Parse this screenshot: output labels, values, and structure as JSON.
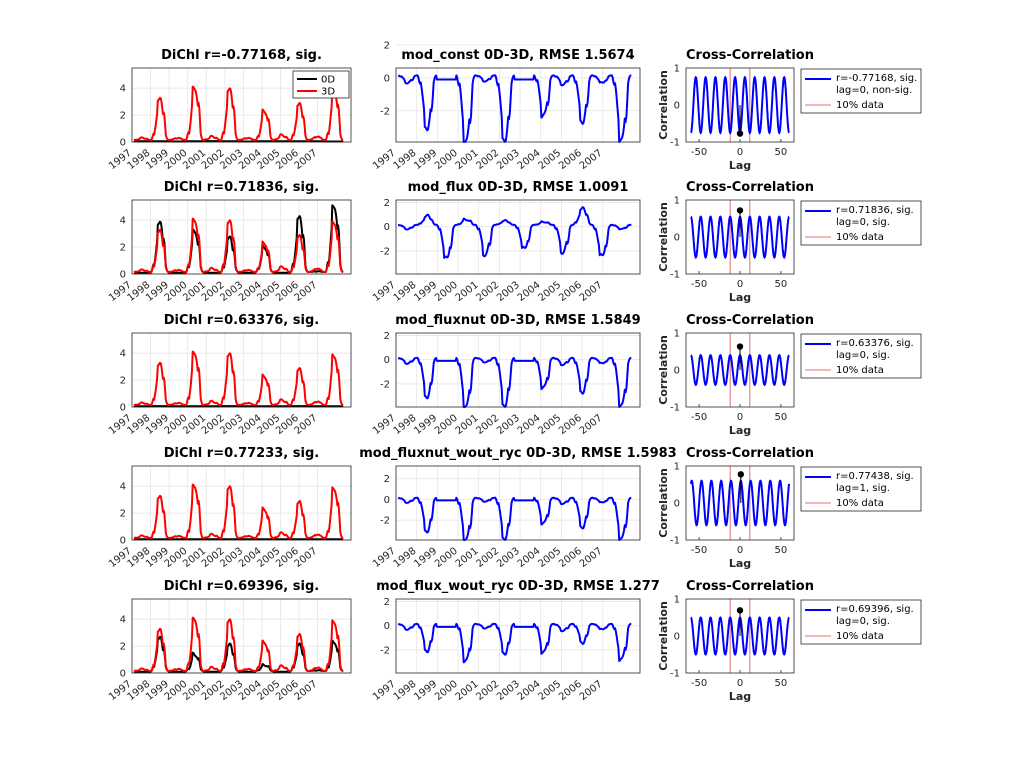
{
  "figure": {
    "background": "#ffffff",
    "grid": true
  },
  "chart_data": [
    {
      "type": "line",
      "title": "DiChl r=-0.77168, sig.",
      "x_ticks": [
        "1997",
        "1998",
        "1999",
        "2000",
        "2001",
        "2002",
        "2003",
        "2004",
        "2005",
        "2006",
        "2007"
      ],
      "ylim": [
        0,
        5.5
      ],
      "y_ticks": [
        0,
        2,
        4
      ],
      "legend": [
        "0D",
        "3D"
      ],
      "series": [
        {
          "name": "0D",
          "color": "#000000",
          "values": [
            0.05,
            0.06,
            0.04,
            0.05,
            0.07,
            0.05,
            0.04,
            0.06,
            0.05,
            0.06,
            0.05,
            0.04
          ]
        },
        {
          "name": "3D",
          "color": "#ff0000",
          "values": [
            0.3,
            3.2,
            0.3,
            4,
            0.4,
            3.9,
            0.3,
            2.3,
            0.5,
            2.8,
            0.4,
            3.8
          ]
        }
      ]
    },
    {
      "type": "line",
      "title": "mod_const 0D-3D, RMSE 1.5674",
      "x_ticks": [
        "1997",
        "1998",
        "1999",
        "2000",
        "2001",
        "2002",
        "2003",
        "2004",
        "2005",
        "2006",
        "2007"
      ],
      "ylim": [
        -3.9,
        0.6
      ],
      "y_ticks": [
        -2,
        0,
        2
      ],
      "series": [
        {
          "name": "",
          "color": "#0000ff",
          "values": [
            -0.3,
            -3.1,
            -0.1,
            -3.9,
            -0.2,
            -3.8,
            -0.1,
            -2.3,
            -0.4,
            -2.7,
            -0.3,
            -3.8
          ]
        }
      ]
    },
    {
      "type": "line",
      "title": "Cross-Correlation",
      "xlabel": "Lag",
      "ylabel": "Correlation",
      "xlim": [
        -66,
        66
      ],
      "ylim": [
        -1,
        1
      ],
      "x_ticks": [
        -50,
        0,
        50
      ],
      "y_ticks": [
        -1,
        0,
        1
      ],
      "period": 12,
      "amplitude": 0.75,
      "phase": -1,
      "peak": {
        "lag": 0,
        "r": -0.77168
      },
      "sig_lines": [
        -12,
        12
      ],
      "legend": [
        "r=-0.77168, sig.",
        "lag=0, non-sig.",
        "10% data"
      ]
    },
    {
      "type": "line",
      "title": "DiChl r=0.71836, sig.",
      "x_ticks": [
        "1997",
        "1998",
        "1999",
        "2000",
        "2001",
        "2002",
        "2003",
        "2004",
        "2005",
        "2006",
        "2007"
      ],
      "ylim": [
        0,
        5.5
      ],
      "y_ticks": [
        0,
        2,
        4
      ],
      "series": [
        {
          "name": "0D",
          "color": "#000000",
          "values": [
            0.1,
            3.8,
            0.1,
            3.2,
            0.1,
            2.7,
            0.1,
            2.0,
            0.1,
            4.2,
            0.2,
            5.0
          ]
        },
        {
          "name": "3D",
          "color": "#ff0000",
          "values": [
            0.3,
            3.2,
            0.3,
            4,
            0.4,
            3.9,
            0.3,
            2.3,
            0.5,
            2.8,
            0.4,
            3.8
          ]
        }
      ]
    },
    {
      "type": "line",
      "title": "mod_flux 0D-3D, RMSE 1.0091",
      "x_ticks": [
        "1997",
        "1998",
        "1999",
        "2000",
        "2001",
        "2002",
        "2003",
        "2004",
        "2005",
        "2006",
        "2007"
      ],
      "ylim": [
        -3.9,
        2.2
      ],
      "y_ticks": [
        -2,
        0,
        2
      ],
      "series": [
        {
          "name": "",
          "color": "#0000ff",
          "values": [
            -0.2,
            0.9,
            -2.6,
            0.6,
            -2.3,
            0.5,
            -1.8,
            0.4,
            -2.1,
            1.5,
            -2.4,
            -0.2
          ]
        }
      ]
    },
    {
      "type": "line",
      "title": "Cross-Correlation",
      "xlabel": "Lag",
      "ylabel": "Correlation",
      "xlim": [
        -66,
        66
      ],
      "ylim": [
        -1,
        1
      ],
      "x_ticks": [
        -50,
        0,
        50
      ],
      "y_ticks": [
        -1,
        0,
        1
      ],
      "period": 12,
      "amplitude": 0.55,
      "phase": 1,
      "peak": {
        "lag": 0,
        "r": 0.71836
      },
      "sig_lines": [
        -12,
        12
      ],
      "legend": [
        "r=0.71836, sig.",
        "lag=0, sig.",
        "10% data"
      ]
    },
    {
      "type": "line",
      "title": "DiChl r=0.63376, sig.",
      "x_ticks": [
        "1997",
        "1998",
        "1999",
        "2000",
        "2001",
        "2002",
        "2003",
        "2004",
        "2005",
        "2006",
        "2007"
      ],
      "ylim": [
        0,
        5.5
      ],
      "y_ticks": [
        0,
        2,
        4
      ],
      "series": [
        {
          "name": "0D",
          "color": "#000000",
          "values": [
            0.05,
            0.07,
            0.05,
            0.06,
            0.05,
            0.07,
            0.05,
            0.06,
            0.05,
            0.07,
            0.05,
            0.06
          ]
        },
        {
          "name": "3D",
          "color": "#ff0000",
          "values": [
            0.3,
            3.2,
            0.3,
            4,
            0.4,
            3.9,
            0.3,
            2.3,
            0.5,
            2.8,
            0.4,
            3.8
          ]
        }
      ]
    },
    {
      "type": "line",
      "title": "mod_fluxnut 0D-3D, RMSE 1.5849",
      "x_ticks": [
        "1997",
        "1998",
        "1999",
        "2000",
        "2001",
        "2002",
        "2003",
        "2004",
        "2005",
        "2006",
        "2007"
      ],
      "ylim": [
        -3.9,
        2.2
      ],
      "y_ticks": [
        -2,
        0,
        2
      ],
      "series": [
        {
          "name": "",
          "color": "#0000ff",
          "values": [
            -0.3,
            -3.1,
            -0.1,
            -3.9,
            -0.2,
            -3.8,
            -0.1,
            -2.3,
            -0.4,
            -2.7,
            -0.3,
            -3.8
          ]
        }
      ]
    },
    {
      "type": "line",
      "title": "Cross-Correlation",
      "xlabel": "Lag",
      "ylabel": "Correlation",
      "xlim": [
        -66,
        66
      ],
      "ylim": [
        -1,
        1
      ],
      "x_ticks": [
        -50,
        0,
        50
      ],
      "y_ticks": [
        -1,
        0,
        1
      ],
      "period": 12,
      "amplitude": 0.4,
      "phase": 1,
      "peak": {
        "lag": 0,
        "r": 0.63376
      },
      "sig_lines": [
        -12,
        12
      ],
      "legend": [
        "r=0.63376, sig.",
        "lag=0, sig.",
        "10% data"
      ]
    },
    {
      "type": "line",
      "title": "DiChl r=0.77233, sig.",
      "x_ticks": [
        "1997",
        "1998",
        "1999",
        "2000",
        "2001",
        "2002",
        "2003",
        "2004",
        "2005",
        "2006",
        "2007"
      ],
      "ylim": [
        0,
        5.5
      ],
      "y_ticks": [
        0,
        2,
        4
      ],
      "series": [
        {
          "name": "0D",
          "color": "#000000",
          "values": [
            0.05,
            0.06,
            0.05,
            0.06,
            0.05,
            0.06,
            0.05,
            0.06,
            0.05,
            0.06,
            0.05,
            0.06
          ]
        },
        {
          "name": "3D",
          "color": "#ff0000",
          "values": [
            0.3,
            3.2,
            0.3,
            4,
            0.4,
            3.9,
            0.3,
            2.3,
            0.5,
            2.8,
            0.4,
            3.8
          ]
        }
      ]
    },
    {
      "type": "line",
      "title": "mod_fluxnut_wout_ryc 0D-3D, RMSE 1.5983",
      "x_ticks": [
        "1997",
        "1998",
        "1999",
        "2000",
        "2001",
        "2002",
        "2003",
        "2004",
        "2005",
        "2006",
        "2007"
      ],
      "ylim": [
        -3.9,
        3.2
      ],
      "y_ticks": [
        -2,
        0,
        2
      ],
      "series": [
        {
          "name": "",
          "color": "#0000ff",
          "values": [
            -0.3,
            -3.1,
            -0.1,
            -3.9,
            -0.2,
            -3.8,
            -0.1,
            -2.3,
            -0.4,
            -2.7,
            -0.3,
            -3.8
          ]
        }
      ]
    },
    {
      "type": "line",
      "title": "Cross-Correlation",
      "xlabel": "Lag",
      "ylabel": "Correlation",
      "xlim": [
        -66,
        66
      ],
      "ylim": [
        -1,
        1
      ],
      "x_ticks": [
        -50,
        0,
        50
      ],
      "y_ticks": [
        -1,
        0,
        1
      ],
      "period": 12,
      "amplitude": 0.6,
      "phase": 1,
      "peak": {
        "lag": 1,
        "r": 0.77438
      },
      "sig_lines": [
        -12,
        12
      ],
      "legend": [
        "r=0.77438, sig.",
        "lag=1, sig.",
        "10% data"
      ]
    },
    {
      "type": "line",
      "title": "DiChl r=0.69396, sig.",
      "x_ticks": [
        "1997",
        "1998",
        "1999",
        "2000",
        "2001",
        "2002",
        "2003",
        "2004",
        "2005",
        "2006",
        "2007"
      ],
      "ylim": [
        0,
        5.5
      ],
      "y_ticks": [
        0,
        2,
        4
      ],
      "series": [
        {
          "name": "0D",
          "color": "#000000",
          "values": [
            0.1,
            2.6,
            0.1,
            1.4,
            0.1,
            2.1,
            0.1,
            0.6,
            0.1,
            2.1,
            0.2,
            2.3
          ]
        },
        {
          "name": "3D",
          "color": "#ff0000",
          "values": [
            0.3,
            3.2,
            0.3,
            4,
            0.4,
            3.9,
            0.3,
            2.3,
            0.5,
            2.8,
            0.4,
            3.8
          ]
        }
      ]
    },
    {
      "type": "line",
      "title": "mod_flux_wout_ryc 0D-3D, RMSE 1.277",
      "x_ticks": [
        "1997",
        "1998",
        "1999",
        "2000",
        "2001",
        "2002",
        "2003",
        "2004",
        "2005",
        "2006",
        "2007"
      ],
      "ylim": [
        -3.9,
        2.2
      ],
      "y_ticks": [
        -2,
        0,
        2
      ],
      "series": [
        {
          "name": "",
          "color": "#0000ff",
          "values": [
            -0.3,
            -2.1,
            -0.1,
            -2.9,
            -0.2,
            -2.3,
            -0.1,
            -2.2,
            -0.4,
            -1.4,
            -0.3,
            -2.8
          ]
        }
      ]
    },
    {
      "type": "line",
      "title": "Cross-Correlation",
      "xlabel": "Lag",
      "ylabel": "Correlation",
      "xlim": [
        -66,
        66
      ],
      "ylim": [
        -1,
        1
      ],
      "x_ticks": [
        -50,
        0,
        50
      ],
      "y_ticks": [
        -1,
        0,
        1
      ],
      "period": 12,
      "amplitude": 0.5,
      "phase": 1,
      "peak": {
        "lag": 0,
        "r": 0.69396
      },
      "sig_lines": [
        -12,
        12
      ],
      "legend": [
        "r=0.69396, sig.",
        "lag=0, sig.",
        "10% data"
      ]
    }
  ]
}
